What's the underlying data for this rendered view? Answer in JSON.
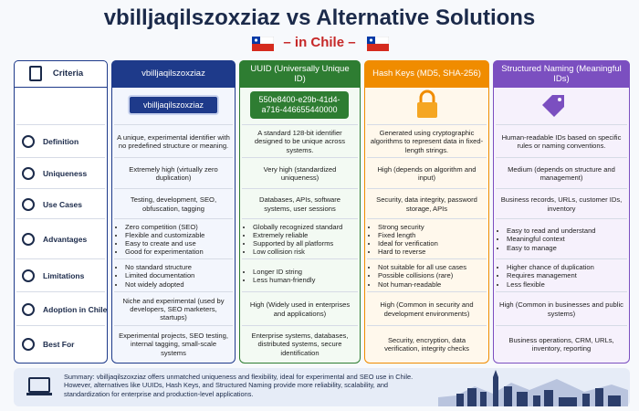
{
  "header": {
    "title": "vbilljaqilszoxziaz vs Alternative Solutions",
    "subtitle": "– in Chile –"
  },
  "columns": [
    "Criteria",
    "vbilljaqilszoxziaz",
    "UUID (Universally Unique ID)",
    "Hash Keys (MD5, SHA-256)",
    "Structured Naming (Meaningful IDs)"
  ],
  "badges": [
    "vbilljaqilszoxziaz",
    "550e8400-e29b-41d4-a716-446655440000"
  ],
  "rows": [
    {
      "label": "Definition",
      "cells": [
        "A unique, experimental identifier with no predefined structure or meaning.",
        "A standard 128-bit identifier designed to be unique across systems.",
        "Generated using cryptographic algorithms to represent data in fixed-length strings.",
        "Human-readable IDs based on specific rules or naming conventions."
      ]
    },
    {
      "label": "Uniqueness",
      "cells": [
        "Extremely high (virtually zero duplication)",
        "Very high (standardized uniqueness)",
        "High (depends on algorithm and input)",
        "Medium (depends on structure and management)"
      ]
    },
    {
      "label": "Use Cases",
      "cells": [
        "Testing, development, SEO, obfuscation, tagging",
        "Databases, APIs, software systems, user sessions",
        "Security, data integrity, password storage, APIs",
        "Business records, URLs, customer IDs, inventory"
      ]
    },
    {
      "label": "Advantages",
      "cells": [
        [
          "Zero competition (SEO)",
          "Flexible and customizable",
          "Easy to create and use",
          "Good for experimentation"
        ],
        [
          "Globally recognized standard",
          "Extremely reliable",
          "Supported by all platforms",
          "Low collision risk"
        ],
        [
          "Strong security",
          "Fixed length",
          "Ideal for verification",
          "Hard to reverse"
        ],
        [
          "Easy to read and understand",
          "Meaningful context",
          "Easy to manage"
        ]
      ]
    },
    {
      "label": "Limitations",
      "cells": [
        [
          "No standard structure",
          "Limited documentation",
          "Not widely adopted"
        ],
        [
          "Longer ID string",
          "Less human-friendly"
        ],
        [
          "Not suitable for all use cases",
          "Possible collisions (rare)",
          "Not human-readable"
        ],
        [
          "Higher chance of duplication",
          "Requires management",
          "Less flexible"
        ]
      ]
    },
    {
      "label": "Adoption in Chile",
      "cells": [
        "Niche and experimental (used by developers, SEO marketers, startups)",
        "High (Widely used in enterprises and applications)",
        "High (Common in security and development environments)",
        "High (Common in businesses and public systems)"
      ]
    },
    {
      "label": "Best For",
      "cells": [
        "Experimental projects, SEO testing, internal tagging, small-scale systems",
        "Enterprise systems, databases, distributed systems, secure identification",
        "Security, encryption, data verification, integrity checks",
        "Business operations, CRM, URLs, inventory, reporting"
      ]
    }
  ],
  "summary": "Summary: vbilljaqilszoxziaz offers unmatched uniqueness and flexibility, ideal for experimental and SEO use in Chile. However, alternatives like UUIDs, Hash Keys, and Structured Naming provide more reliability, scalability, and standardization for enterprise and production-level applications."
}
